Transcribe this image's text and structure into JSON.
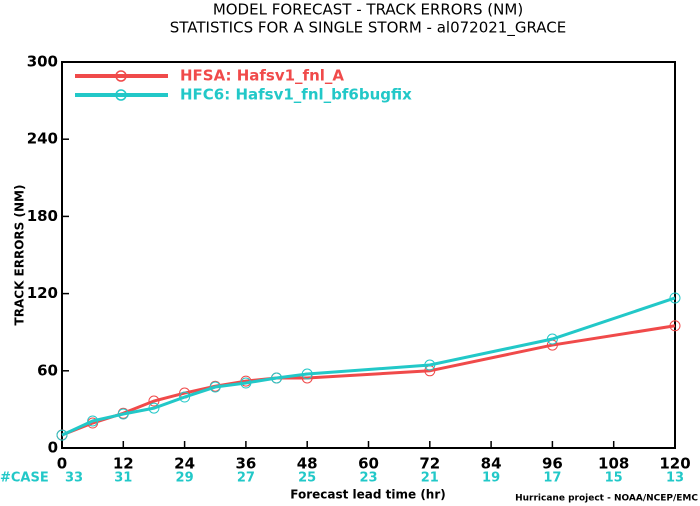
{
  "chart_data": {
    "type": "line",
    "title": "MODEL FORECAST - TRACK ERRORS (NM)",
    "subtitle": "STATISTICS FOR A SINGLE STORM - al072021_GRACE",
    "x_label": "Forecast lead time (hr)",
    "y_label": "TRACK ERRORS (NM)",
    "footer": "Hurricane project - NOAA/NCEP/EMC",
    "case_label": "#CASE",
    "case_counts": [
      33,
      31,
      29,
      27,
      25,
      23,
      21,
      19,
      17,
      15,
      13
    ],
    "x": [
      0,
      6,
      12,
      18,
      24,
      30,
      36,
      42,
      48,
      72,
      96,
      120
    ],
    "series": [
      {
        "name": "HFSA: Hafsv1_fnl_A",
        "color": "#f04a4a",
        "values": [
          10.1,
          19.4,
          27,
          36.5,
          42.7,
          48,
          52,
          54.4,
          54.4,
          60,
          80,
          95
        ]
      },
      {
        "name": "HFC6: Hafsv1_fnl_bf6bugfix",
        "color": "#22c8c8",
        "values": [
          10,
          21,
          26.4,
          31,
          39.6,
          47.4,
          50.5,
          54.4,
          57.5,
          64.5,
          84.7,
          116.6
        ]
      }
    ],
    "xlim": [
      0,
      120
    ],
    "xticks": [
      0,
      12,
      24,
      36,
      48,
      60,
      72,
      84,
      96,
      108,
      120
    ],
    "ylim": [
      0,
      300
    ],
    "yticks": [
      0,
      60,
      120,
      180,
      240,
      300
    ]
  }
}
